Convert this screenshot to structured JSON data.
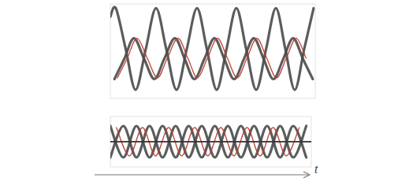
{
  "chart_data": [
    {
      "type": "line",
      "xlim": [
        0,
        10
      ],
      "ylim": [
        -1.1,
        1.1
      ],
      "tick_labels": false,
      "series": [
        {
          "color": "#4a4a4a",
          "x": [
            0,
            0.27,
            0.75,
            1.23,
            1.73,
            2.23,
            2.73,
            3.23,
            3.73,
            4.23,
            4.71,
            5.19,
            5.67,
            6.15,
            6.63,
            7.12,
            7.6,
            8.08,
            8.54,
            9.0,
            9.46,
            9.92
          ],
          "values": [
            0.8,
            1.0,
            0.05,
            -0.9,
            0.05,
            1.0,
            0.05,
            -0.9,
            0.05,
            1.0,
            0.05,
            -0.9,
            0.05,
            1.0,
            0.05,
            -0.9,
            0.05,
            1.0,
            0.05,
            -0.9,
            0.05,
            1.0
          ]
        },
        {
          "color": "#4a4a4a",
          "x": [
            0.2,
            0.68,
            1.15,
            1.65,
            2.15,
            2.63,
            3.15,
            3.63,
            4.1,
            4.59,
            5.08,
            5.56,
            6.04,
            6.52,
            7.0,
            7.48,
            7.96,
            8.44,
            8.92,
            9.4,
            9.88
          ],
          "values": [
            -0.65,
            -0.18,
            0.3,
            -0.18,
            -0.65,
            -0.18,
            0.3,
            -0.18,
            -0.65,
            -0.18,
            0.3,
            -0.18,
            -0.65,
            -0.18,
            0.3,
            -0.18,
            -0.65,
            -0.18,
            0.3,
            -0.18,
            -0.65
          ]
        },
        {
          "color": "#c0392b",
          "x": [
            0.35,
            0.83,
            1.3,
            1.8,
            2.3,
            2.78,
            3.3,
            3.78,
            4.25,
            4.74,
            5.23,
            5.71,
            6.19,
            6.67,
            7.15,
            7.63,
            8.11,
            8.59,
            9.07,
            9.55
          ],
          "values": [
            -0.62,
            -0.16,
            0.3,
            -0.16,
            -0.62,
            -0.16,
            0.3,
            -0.16,
            -0.62,
            -0.16,
            0.3,
            -0.16,
            -0.62,
            -0.16,
            0.3,
            -0.16,
            -0.62,
            -0.16,
            0.3,
            -0.16
          ]
        }
      ]
    },
    {
      "type": "line",
      "x_label": "t",
      "xlim": [
        0,
        10
      ],
      "ylim": [
        -1.6,
        1.6
      ],
      "tick_labels": false,
      "series": [
        {
          "color": "#4a4a4a",
          "x": [
            0,
            0.65,
            1.3,
            1.95,
            2.6,
            3.25,
            3.9,
            4.55,
            5.2,
            5.85,
            6.5,
            7.15,
            7.8,
            8.45,
            9.1,
            9.75
          ],
          "values": [
            1,
            -1,
            1,
            -1,
            1,
            -1,
            1,
            -1,
            1,
            -1,
            1,
            -1,
            1,
            -1,
            1,
            -1
          ]
        },
        {
          "color": "#4a4a4a",
          "x": [
            0,
            0.65,
            1.3,
            1.95,
            2.6,
            3.25,
            3.9,
            4.55,
            5.2,
            5.85,
            6.5,
            7.15,
            7.8,
            8.45,
            9.1,
            9.75
          ],
          "values": [
            -1,
            1,
            -1,
            1,
            -1,
            1,
            -1,
            1,
            -1,
            1,
            -1,
            1,
            -1,
            1,
            -1,
            1
          ]
        },
        {
          "color": "#c0392b",
          "x": [
            0.3,
            0.95,
            1.6,
            2.25,
            2.9,
            3.55,
            4.2,
            4.85,
            5.5,
            6.15,
            6.8,
            7.45,
            8.1,
            8.75,
            9.4
          ],
          "values": [
            0.9,
            -0.9,
            0.9,
            -0.9,
            0.9,
            -0.9,
            0.9,
            -0.9,
            0.9,
            -0.9,
            0.9,
            -0.9,
            0.9,
            -0.9,
            0.9
          ]
        },
        {
          "color": "#333333",
          "x": [
            0,
            10
          ],
          "values": [
            0,
            0
          ]
        }
      ]
    }
  ]
}
